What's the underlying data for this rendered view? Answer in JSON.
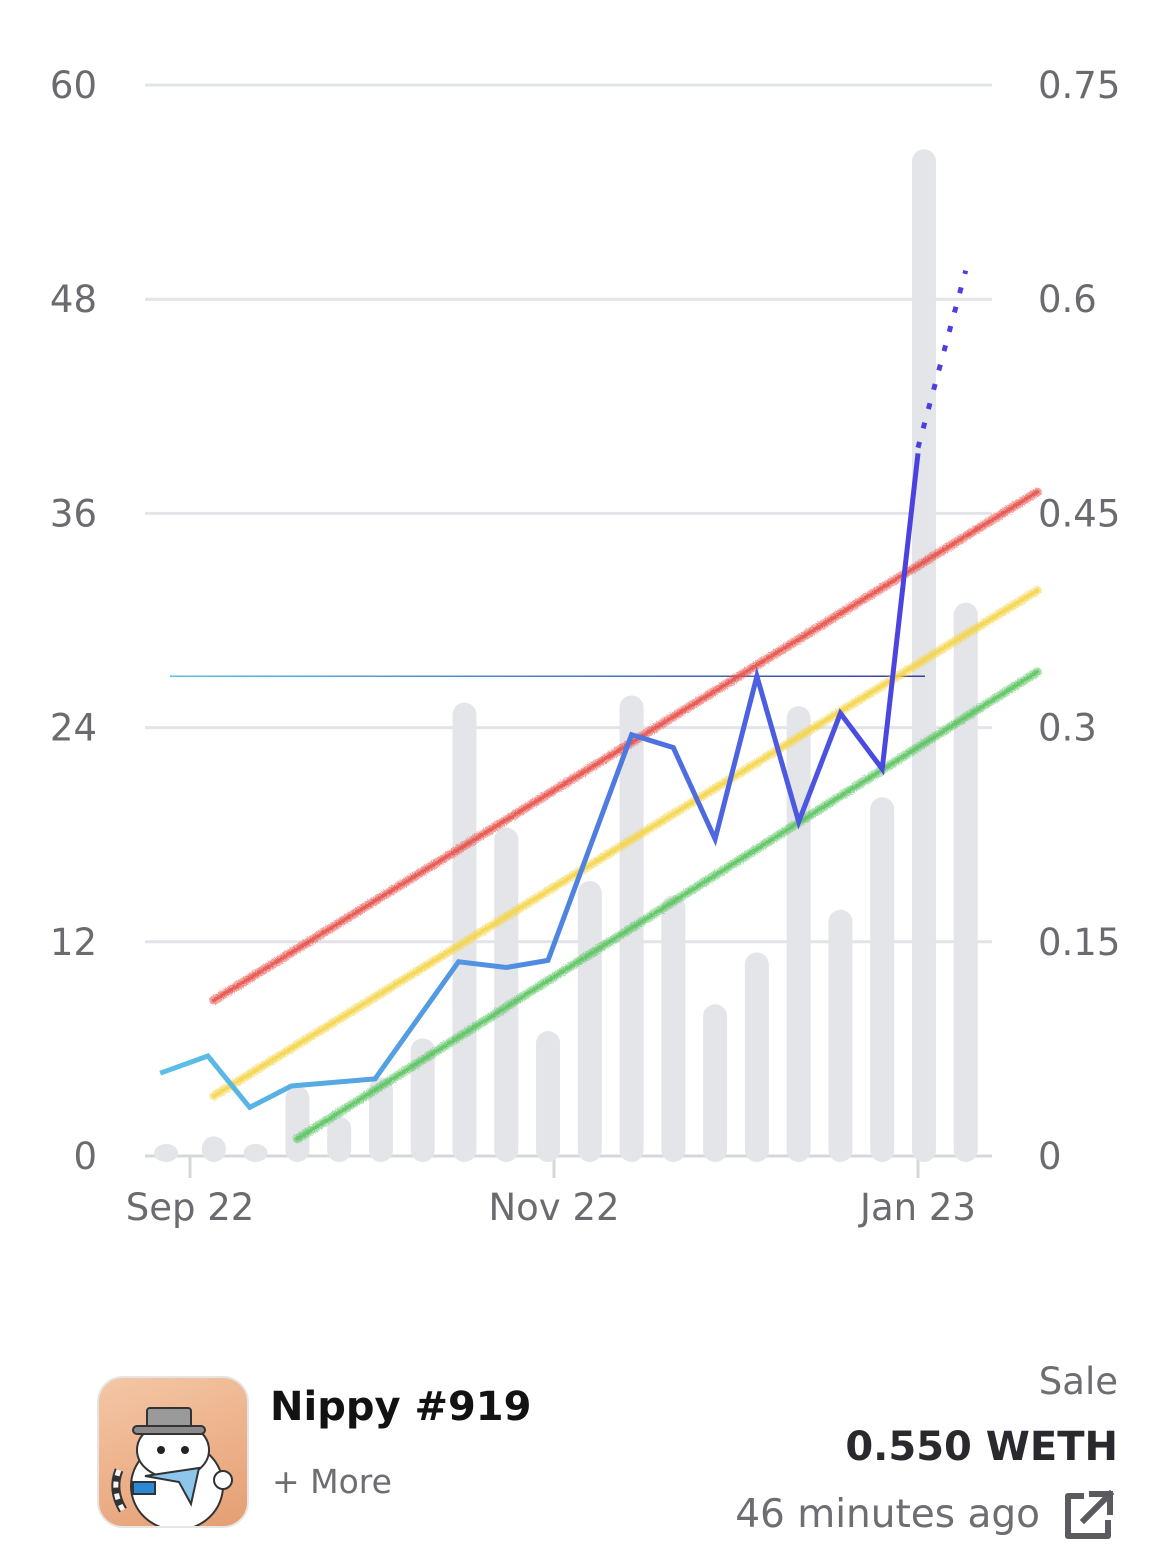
{
  "chart_data": {
    "type": "bar+line",
    "title": "",
    "xlabel": "",
    "ylabel": "",
    "x_ticks": [
      {
        "label": "Sep 22",
        "date": "2022-09-01"
      },
      {
        "label": "Nov 22",
        "date": "2022-11-01"
      },
      {
        "label": "Jan 23",
        "date": "2023-01-01"
      }
    ],
    "y_left": {
      "ticks": [
        0,
        12,
        24,
        36,
        48,
        60
      ],
      "ylim": [
        0,
        60
      ]
    },
    "y_right": {
      "ticks": [
        "0",
        "0.15",
        "0.3",
        "0.45",
        "0.6",
        "0.75"
      ],
      "ylim": [
        0,
        0.75
      ]
    },
    "grid": true,
    "bars": {
      "axis": "left",
      "color": "#e4e5e9",
      "points": [
        {
          "date": "2022-08-28",
          "value": 0.5
        },
        {
          "date": "2022-09-05",
          "value": 1.1
        },
        {
          "date": "2022-09-12",
          "value": 0.3
        },
        {
          "date": "2022-09-19",
          "value": 3.9
        },
        {
          "date": "2022-09-26",
          "value": 2.2
        },
        {
          "date": "2022-10-03",
          "value": 4.4
        },
        {
          "date": "2022-10-10",
          "value": 6.6
        },
        {
          "date": "2022-10-17",
          "value": 25.4
        },
        {
          "date": "2022-10-24",
          "value": 18.4
        },
        {
          "date": "2022-10-31",
          "value": 7.0
        },
        {
          "date": "2022-11-07",
          "value": 15.4
        },
        {
          "date": "2022-11-14",
          "value": 25.8
        },
        {
          "date": "2022-11-21",
          "value": 14.6
        },
        {
          "date": "2022-11-28",
          "value": 8.5
        },
        {
          "date": "2022-12-05",
          "value": 11.4
        },
        {
          "date": "2022-12-12",
          "value": 25.2
        },
        {
          "date": "2022-12-19",
          "value": 13.8
        },
        {
          "date": "2022-12-26",
          "value": 20.1
        },
        {
          "date": "2023-01-02",
          "value": 56.4
        },
        {
          "date": "2023-01-09",
          "value": 31.0
        }
      ]
    },
    "series": [
      {
        "axis": "right",
        "style": "solid",
        "colors": [
          "#5bc0e5",
          "#4b3fe0"
        ],
        "points": [
          {
            "date": "2022-08-27",
            "value": 0.058
          },
          {
            "date": "2022-09-04",
            "value": 0.07
          },
          {
            "date": "2022-09-11",
            "value": 0.034
          },
          {
            "date": "2022-09-18",
            "value": 0.049
          },
          {
            "date": "2022-10-02",
            "value": 0.054
          },
          {
            "date": "2022-10-16",
            "value": 0.136
          },
          {
            "date": "2022-10-24",
            "value": 0.132
          },
          {
            "date": "2022-10-31",
            "value": 0.137
          },
          {
            "date": "2022-11-14",
            "value": 0.295
          },
          {
            "date": "2022-11-21",
            "value": 0.286
          },
          {
            "date": "2022-11-28",
            "value": 0.222
          },
          {
            "date": "2022-12-05",
            "value": 0.336
          },
          {
            "date": "2022-12-12",
            "value": 0.234
          },
          {
            "date": "2022-12-19",
            "value": 0.31
          },
          {
            "date": "2022-12-26",
            "value": 0.271
          },
          {
            "date": "2023-01-01",
            "value": 0.492
          }
        ]
      },
      {
        "axis": "right",
        "style": "dotted",
        "color": "#4b3fe0",
        "points": [
          {
            "date": "2023-01-01",
            "value": 0.496
          },
          {
            "date": "2023-01-09",
            "value": 0.62
          }
        ]
      }
    ],
    "reference_line": {
      "axis": "right",
      "value": 0.336,
      "color": "#3b8fd9"
    },
    "trend_bands": [
      {
        "color": "#e8524a",
        "start": {
          "date": "2022-09-05",
          "value": 0.109
        },
        "end": {
          "date": "2023-01-21",
          "value": 0.465
        }
      },
      {
        "color": "#f4d54a",
        "start": {
          "date": "2022-09-05",
          "value": 0.042
        },
        "end": {
          "date": "2023-01-21",
          "value": 0.396
        }
      },
      {
        "color": "#5cc462",
        "start": {
          "date": "2022-09-19",
          "value": 0.012
        },
        "end": {
          "date": "2023-01-21",
          "value": 0.339
        }
      }
    ]
  },
  "footer": {
    "item_name": "Nippy #919",
    "more_label": "+ More",
    "event_label": "Sale",
    "price": "0.550 WETH",
    "time_ago": "46 minutes ago",
    "thumbnail_icon": "nippy-cat-avatar",
    "link_icon": "external-link-icon"
  }
}
